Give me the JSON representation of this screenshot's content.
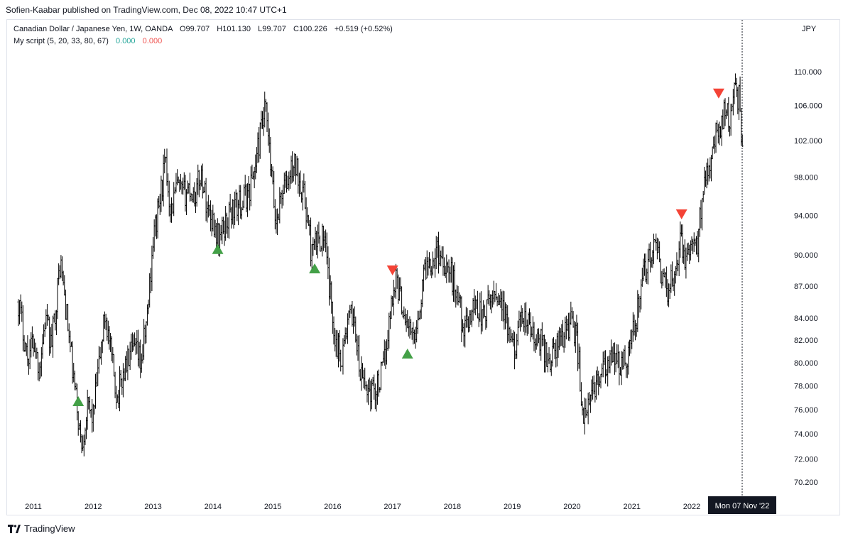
{
  "header": {
    "publisher": "Sofien-Kaabar published on TradingView.com, Dec 08, 2022 10:47 UTC+1"
  },
  "legend": {
    "symbol": "Canadian Dollar / Japanese Yen, 1W, OANDA",
    "ohlc": {
      "open": "O99.707",
      "high": "H101.130",
      "low": "L99.707",
      "close": "C100.226",
      "change": "+0.519 (+0.52%)"
    },
    "indicator": {
      "name": "My script (5, 20, 33, 80, 67)",
      "value1": "0.000",
      "value2": "0.000"
    }
  },
  "footer": {
    "brand": "TradingView"
  },
  "colors": {
    "bar": "#000000",
    "buy_marker": "#43a047",
    "sell_marker": "#f44336",
    "value_up": "#26a69a",
    "value_down": "#ef5350",
    "crosshair_label_bg": "#131722"
  },
  "chart_data": {
    "type": "line",
    "series_style": "ohlc-bars",
    "currency_label": "JPY",
    "y_scale": "log",
    "ylim": [
      69.5,
      113
    ],
    "y_ticks": [
      "110.000",
      "106.000",
      "102.000",
      "98.000",
      "94.000",
      "90.000",
      "87.000",
      "84.000",
      "82.000",
      "80.000",
      "78.000",
      "76.000",
      "74.000",
      "72.000",
      "70.200"
    ],
    "x_ticks": [
      "2011",
      "2012",
      "2013",
      "2014",
      "2015",
      "2016",
      "2017",
      "2018",
      "2019",
      "2020",
      "2021",
      "2022"
    ],
    "crosshair_label": "Mon 07 Nov '22",
    "grid": false,
    "series": [
      {
        "values": [
          [
            2010.75,
            85.5
          ],
          [
            2010.9,
            80.5
          ],
          [
            2011.0,
            82.0
          ],
          [
            2011.1,
            79.5
          ],
          [
            2011.2,
            84.0
          ],
          [
            2011.3,
            81.5
          ],
          [
            2011.4,
            86.5
          ],
          [
            2011.45,
            89.5
          ],
          [
            2011.55,
            84.5
          ],
          [
            2011.65,
            79.5
          ],
          [
            2011.72,
            76.5
          ],
          [
            2011.8,
            73.0
          ],
          [
            2011.9,
            76.0
          ],
          [
            2012.0,
            75.5
          ],
          [
            2012.1,
            80.0
          ],
          [
            2012.2,
            84.5
          ],
          [
            2012.3,
            80.5
          ],
          [
            2012.4,
            77.0
          ],
          [
            2012.5,
            79.0
          ],
          [
            2012.6,
            80.5
          ],
          [
            2012.7,
            81.0
          ],
          [
            2012.8,
            80.0
          ],
          [
            2012.9,
            84.0
          ],
          [
            2013.0,
            91.5
          ],
          [
            2013.1,
            95.0
          ],
          [
            2013.2,
            99.5
          ],
          [
            2013.3,
            94.5
          ],
          [
            2013.4,
            97.0
          ],
          [
            2013.5,
            96.0
          ],
          [
            2013.6,
            97.0
          ],
          [
            2013.7,
            96.0
          ],
          [
            2013.8,
            98.5
          ],
          [
            2013.9,
            95.0
          ],
          [
            2014.0,
            93.5
          ],
          [
            2014.1,
            91.5
          ],
          [
            2014.2,
            93.0
          ],
          [
            2014.3,
            94.5
          ],
          [
            2014.4,
            95.0
          ],
          [
            2014.5,
            95.5
          ],
          [
            2014.6,
            96.5
          ],
          [
            2014.7,
            99.0
          ],
          [
            2014.8,
            103.0
          ],
          [
            2014.88,
            105.5
          ],
          [
            2014.95,
            100.0
          ],
          [
            2015.05,
            93.0
          ],
          [
            2015.15,
            96.5
          ],
          [
            2015.25,
            97.5
          ],
          [
            2015.35,
            99.5
          ],
          [
            2015.45,
            98.0
          ],
          [
            2015.55,
            95.0
          ],
          [
            2015.65,
            90.0
          ],
          [
            2015.75,
            91.5
          ],
          [
            2015.85,
            92.0
          ],
          [
            2015.95,
            86.5
          ],
          [
            2016.05,
            82.0
          ],
          [
            2016.15,
            80.5
          ],
          [
            2016.25,
            83.5
          ],
          [
            2016.35,
            84.5
          ],
          [
            2016.45,
            79.0
          ],
          [
            2016.55,
            78.0
          ],
          [
            2016.65,
            77.5
          ],
          [
            2016.75,
            78.0
          ],
          [
            2016.85,
            79.5
          ],
          [
            2016.95,
            84.0
          ],
          [
            2017.05,
            88.0
          ],
          [
            2017.15,
            85.5
          ],
          [
            2017.25,
            83.5
          ],
          [
            2017.35,
            82.0
          ],
          [
            2017.45,
            85.0
          ],
          [
            2017.55,
            89.0
          ],
          [
            2017.65,
            89.5
          ],
          [
            2017.75,
            90.5
          ],
          [
            2017.85,
            89.5
          ],
          [
            2017.95,
            88.5
          ],
          [
            2018.1,
            86.0
          ],
          [
            2018.2,
            82.5
          ],
          [
            2018.3,
            84.5
          ],
          [
            2018.4,
            85.5
          ],
          [
            2018.5,
            84.0
          ],
          [
            2018.6,
            85.0
          ],
          [
            2018.7,
            86.5
          ],
          [
            2018.8,
            86.0
          ],
          [
            2018.9,
            83.5
          ],
          [
            2019.0,
            81.0
          ],
          [
            2019.1,
            82.5
          ],
          [
            2019.2,
            84.0
          ],
          [
            2019.3,
            83.0
          ],
          [
            2019.4,
            81.5
          ],
          [
            2019.5,
            82.0
          ],
          [
            2019.6,
            80.0
          ],
          [
            2019.7,
            81.0
          ],
          [
            2019.8,
            82.0
          ],
          [
            2019.9,
            83.0
          ],
          [
            2020.0,
            84.0
          ],
          [
            2020.1,
            81.0
          ],
          [
            2020.15,
            77.5
          ],
          [
            2020.2,
            75.0
          ],
          [
            2020.3,
            76.5
          ],
          [
            2020.4,
            78.5
          ],
          [
            2020.5,
            79.0
          ],
          [
            2020.6,
            79.5
          ],
          [
            2020.7,
            80.5
          ],
          [
            2020.8,
            79.5
          ],
          [
            2020.9,
            80.5
          ],
          [
            2021.0,
            82.0
          ],
          [
            2021.1,
            85.0
          ],
          [
            2021.2,
            88.0
          ],
          [
            2021.3,
            90.0
          ],
          [
            2021.4,
            90.5
          ],
          [
            2021.5,
            88.0
          ],
          [
            2021.6,
            86.5
          ],
          [
            2021.7,
            88.0
          ],
          [
            2021.8,
            91.5
          ],
          [
            2021.9,
            89.5
          ],
          [
            2022.0,
            90.5
          ],
          [
            2022.1,
            91.0
          ],
          [
            2022.2,
            98.0
          ],
          [
            2022.3,
            100.0
          ],
          [
            2022.4,
            102.5
          ],
          [
            2022.5,
            104.0
          ],
          [
            2022.55,
            106.5
          ],
          [
            2022.65,
            104.0
          ],
          [
            2022.72,
            107.5
          ],
          [
            2022.8,
            107.0
          ],
          [
            2022.85,
            100.0
          ]
        ]
      }
    ],
    "signals": [
      {
        "type": "buy",
        "x": 2011.75,
        "y": 76.7
      },
      {
        "type": "buy",
        "x": 2014.08,
        "y": 90.6
      },
      {
        "type": "buy",
        "x": 2015.7,
        "y": 88.7
      },
      {
        "type": "sell",
        "x": 2017.0,
        "y": 88.5
      },
      {
        "type": "buy",
        "x": 2017.25,
        "y": 80.8
      },
      {
        "type": "sell",
        "x": 2021.83,
        "y": 94.1
      },
      {
        "type": "sell",
        "x": 2022.45,
        "y": 107.4
      }
    ]
  }
}
